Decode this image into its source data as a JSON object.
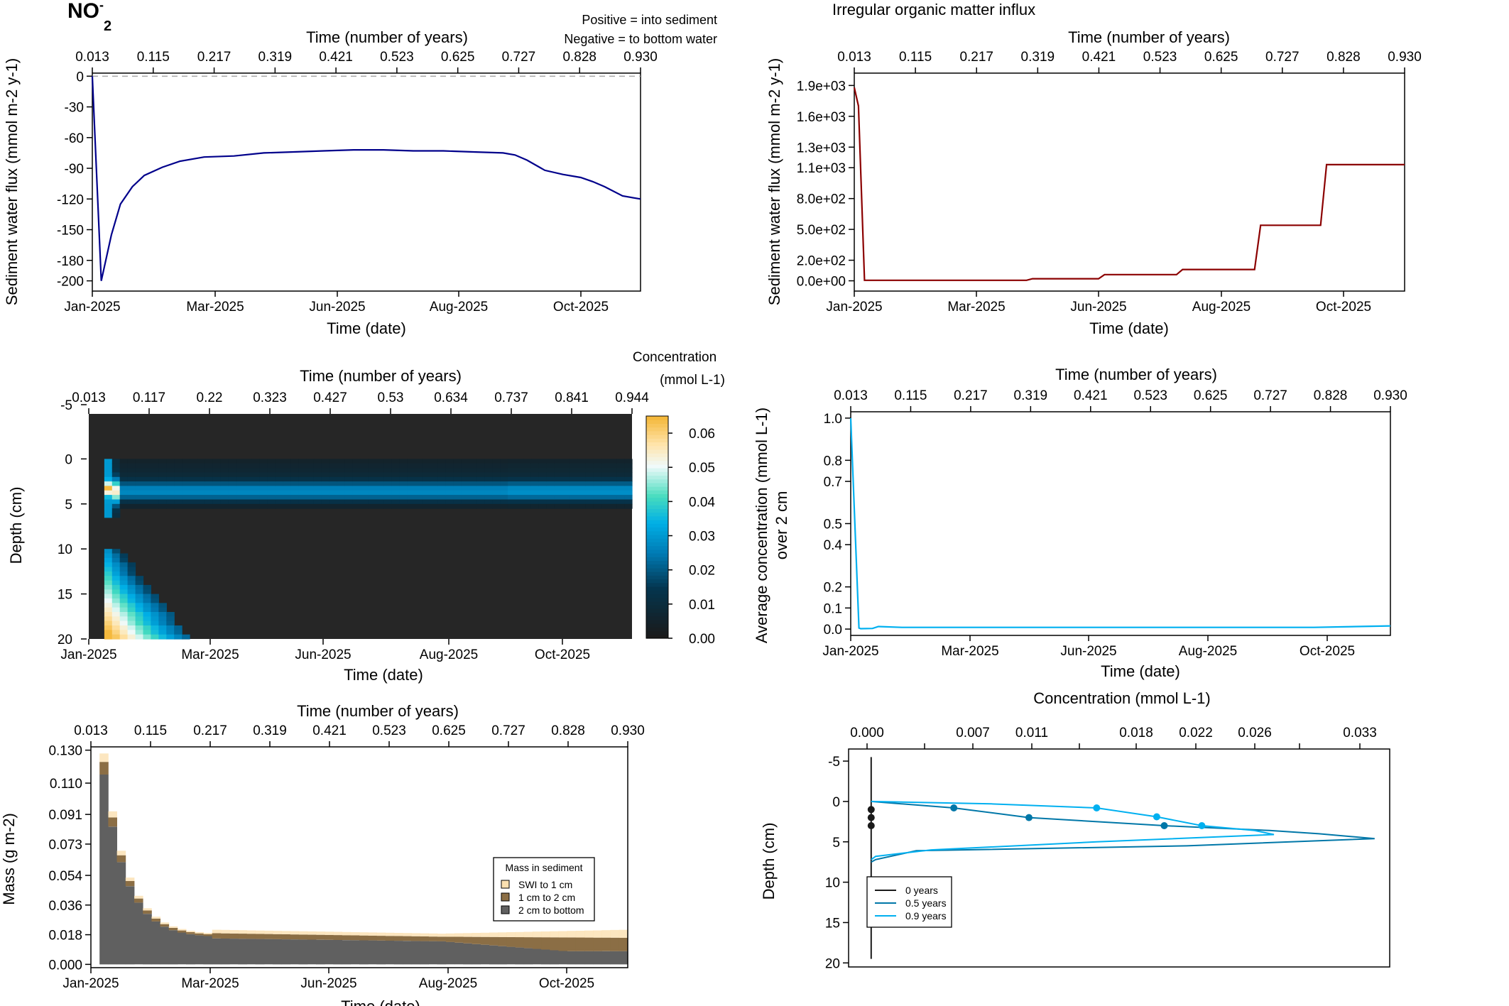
{
  "figure": {
    "species_base": "NO",
    "species_sup": "-",
    "species_sub": "2",
    "legend_positive": "Positive = into sediment",
    "legend_negative": "Negative = to bottom water",
    "title_right": "Irregular organic matter influx",
    "colors": {
      "navy": "#00008b",
      "darkred": "#8b0000",
      "cyan": "#00b0f0",
      "teal": "#0077a8",
      "dark": "#1a1a1a"
    }
  },
  "chart_data": [
    {
      "id": "flux_no2",
      "type": "line",
      "top_axis_label": "Time (number of years)",
      "top_ticks": [
        "0.013",
        "0.115",
        "0.217",
        "0.319",
        "0.421",
        "0.523",
        "0.625",
        "0.727",
        "0.828",
        "0.930"
      ],
      "xlabel": "Time (date)",
      "x_ticks": [
        "Jan-2025",
        "Mar-2025",
        "Jun-2025",
        "Aug-2025",
        "Oct-2025"
      ],
      "ylabel": "Sediment water flux (mmol m-2 y-1)",
      "y_ticks": [
        "0",
        "-30",
        "-60",
        "-90",
        "-120",
        "-150",
        "-180",
        "-200"
      ],
      "ylim": [
        -210,
        3
      ],
      "xlim": [
        0.013,
        0.93
      ],
      "zero_line": true,
      "series": [
        {
          "color": "#00008b",
          "x": [
            0.013,
            0.028,
            0.045,
            0.06,
            0.08,
            0.1,
            0.13,
            0.16,
            0.2,
            0.25,
            0.3,
            0.35,
            0.4,
            0.45,
            0.5,
            0.55,
            0.6,
            0.65,
            0.7,
            0.72,
            0.74,
            0.77,
            0.8,
            0.83,
            0.85,
            0.87,
            0.9,
            0.93
          ],
          "y": [
            0,
            -200,
            -155,
            -125,
            -108,
            -97,
            -89,
            -83,
            -79,
            -78,
            -75,
            -74,
            -73,
            -72,
            -72,
            -73,
            -73,
            -74,
            -75,
            -77,
            -82,
            -92,
            -96,
            -99,
            -103,
            -108,
            -117,
            -120
          ]
        }
      ]
    },
    {
      "id": "om_influx",
      "type": "line",
      "top_axis_label": "Time (number of years)",
      "top_ticks": [
        "0.013",
        "0.115",
        "0.217",
        "0.319",
        "0.421",
        "0.523",
        "0.625",
        "0.727",
        "0.828",
        "0.930"
      ],
      "xlabel": "Time (date)",
      "x_ticks": [
        "Jan-2025",
        "Mar-2025",
        "Jun-2025",
        "Aug-2025",
        "Oct-2025"
      ],
      "ylabel": "Sediment water flux (mmol m-2 y-1)",
      "y_ticks": [
        "0.0e+00",
        "2.0e+02",
        "5.0e+02",
        "8.0e+02",
        "1.1e+03",
        "1.3e+03",
        "1.6e+03",
        "1.9e+03"
      ],
      "ylim": [
        -100,
        2020
      ],
      "xlim": [
        0.013,
        0.93
      ],
      "series": [
        {
          "color": "#8b0000",
          "x": [
            0.013,
            0.02,
            0.03,
            0.3,
            0.31,
            0.42,
            0.43,
            0.55,
            0.56,
            0.68,
            0.69,
            0.79,
            0.8,
            0.93
          ],
          "y": [
            1880,
            1700,
            5,
            5,
            20,
            20,
            60,
            60,
            110,
            110,
            540,
            540,
            1130,
            1130
          ]
        }
      ]
    },
    {
      "id": "depth_heatmap",
      "type": "heatmap",
      "top_axis_label": "Time (number of years)",
      "top_ticks": [
        "0.013",
        "0.117",
        "0.22",
        "0.323",
        "0.427",
        "0.53",
        "0.634",
        "0.737",
        "0.841",
        "0.944"
      ],
      "xlabel": "Time (date)",
      "x_ticks": [
        "Jan-2025",
        "Mar-2025",
        "Jun-2025",
        "Aug-2025",
        "Oct-2025"
      ],
      "ylabel": "Depth (cm)",
      "y_ticks": [
        "-5",
        "0",
        "5",
        "10",
        "15",
        "20"
      ],
      "ylim": [
        -5,
        20
      ],
      "xlim": [
        0.013,
        0.944
      ],
      "colorbar_title": "Concentration",
      "colorbar_unit": "(mmol L-1)",
      "colorbar_ticks": [
        "0.00",
        "0.01",
        "0.02",
        "0.03",
        "0.04",
        "0.05",
        "0.06"
      ],
      "color_range": [
        0,
        0.065
      ]
    },
    {
      "id": "avg_conc",
      "type": "line",
      "top_axis_label": "Time (number of years)",
      "top_ticks": [
        "0.013",
        "0.115",
        "0.217",
        "0.319",
        "0.421",
        "0.523",
        "0.625",
        "0.727",
        "0.828",
        "0.930"
      ],
      "xlabel": "Time (date)",
      "x_ticks": [
        "Jan-2025",
        "Mar-2025",
        "Jun-2025",
        "Aug-2025",
        "Oct-2025"
      ],
      "ylabel": "Average concentration (mmol L-1)",
      "ylabel2": "over 2 cm",
      "y_ticks": [
        "0.0",
        "0.1",
        "0.2",
        "0.4",
        "0.5",
        "0.7",
        "0.8",
        "1.0"
      ],
      "ylim": [
        -0.03,
        1.03
      ],
      "xlim": [
        0.013,
        0.93
      ],
      "series": [
        {
          "color": "#00b0f0",
          "x": [
            0.013,
            0.027,
            0.03,
            0.05,
            0.06,
            0.1,
            0.3,
            0.6,
            0.8,
            0.93
          ],
          "y": [
            1.0,
            0.005,
            0.002,
            0.003,
            0.012,
            0.008,
            0.008,
            0.008,
            0.008,
            0.015
          ]
        }
      ]
    },
    {
      "id": "mass_sediment",
      "type": "bar",
      "top_axis_label": "Time (number of years)",
      "top_ticks": [
        "0.013",
        "0.115",
        "0.217",
        "0.319",
        "0.421",
        "0.523",
        "0.625",
        "0.727",
        "0.828",
        "0.930"
      ],
      "xlabel": "Time (date)",
      "x_ticks": [
        "Jan-2025",
        "Mar-2025",
        "Jun-2025",
        "Aug-2025",
        "Oct-2025"
      ],
      "ylabel": "Mass (g m-2)",
      "y_ticks": [
        "0.000",
        "0.018",
        "0.036",
        "0.054",
        "0.073",
        "0.091",
        "0.110",
        "0.130"
      ],
      "ylim": [
        -0.002,
        0.132
      ],
      "xlim": [
        0.0,
        0.93
      ],
      "legend_title": "Mass in sediment",
      "legend_position": "right",
      "series": [
        {
          "name": "SWI to 1 cm",
          "color": "#fbe0b0"
        },
        {
          "name": "1 cm to 2 cm",
          "color": "#8b6e45"
        },
        {
          "name": "2 cm to bottom",
          "color": "#606060"
        }
      ]
    },
    {
      "id": "depth_profiles",
      "type": "line",
      "top_axis_label": "Concentration (mmol L-1)",
      "top_ticks": [
        "0.000",
        "0.007",
        "0.011",
        "0.018",
        "0.022",
        "0.026",
        "0.033"
      ],
      "ylabel": "Depth (cm)",
      "y_ticks": [
        "-5",
        "0",
        "5",
        "10",
        "15",
        "20"
      ],
      "ylim": [
        -6.5,
        20.5
      ],
      "xlim": [
        -0.0015,
        0.0345
      ],
      "legend_position": "bottom-left",
      "series": [
        {
          "name": "0 years",
          "color": "#1a1a1a",
          "x": [
            0,
            0,
            0,
            0,
            0
          ],
          "y": [
            -5.5,
            0,
            1,
            2,
            19.5
          ]
        },
        {
          "name": "0.5 years",
          "color": "#0077a8",
          "x": [
            0.0,
            0.0055,
            0.0105,
            0.0195,
            0.0265,
            0.0298,
            0.0335,
            0.021,
            0.003,
            0.0003,
            0.0
          ],
          "y": [
            0.0,
            0.8,
            2.0,
            3.0,
            3.6,
            4.0,
            4.6,
            5.5,
            6.1,
            7.2,
            7.5
          ]
        },
        {
          "name": "0.9 years",
          "color": "#00b0f0",
          "x": [
            0.0,
            0.008,
            0.015,
            0.019,
            0.022,
            0.0255,
            0.0268,
            0.015,
            0.004,
            0.0003,
            0.0
          ],
          "y": [
            0.0,
            0.3,
            0.8,
            1.9,
            3.0,
            3.6,
            4.1,
            5.0,
            6.0,
            6.8,
            7.2
          ]
        }
      ]
    }
  ]
}
